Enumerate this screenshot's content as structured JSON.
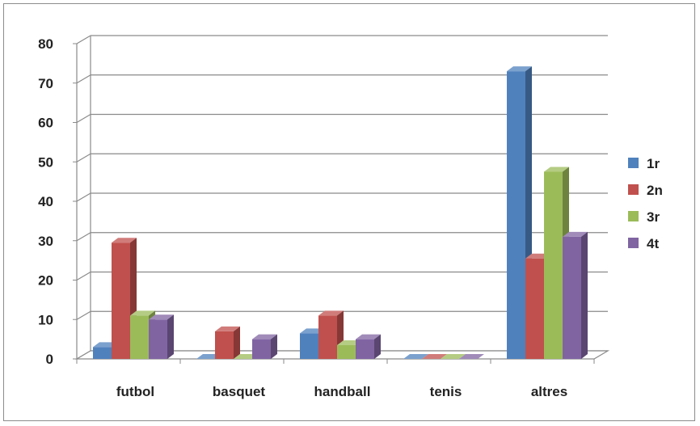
{
  "chart_data": {
    "type": "bar",
    "title": "",
    "xlabel": "",
    "ylabel": "",
    "ylim": [
      0,
      80
    ],
    "yticks": [
      0,
      10,
      20,
      30,
      40,
      50,
      60,
      70,
      80
    ],
    "grid": true,
    "legend_position": "right",
    "categories": [
      "futbol",
      "basquet",
      "handball",
      "tenis",
      "altres"
    ],
    "series": [
      {
        "name": "1r",
        "color": "#4F81BD",
        "values": [
          3,
          0,
          6.5,
          0,
          73
        ]
      },
      {
        "name": "2n",
        "color": "#C0504D",
        "values": [
          29.5,
          7,
          11,
          0,
          25.5
        ]
      },
      {
        "name": "3r",
        "color": "#9BBB59",
        "values": [
          11,
          0,
          3.5,
          0,
          47.5
        ]
      },
      {
        "name": "4t",
        "color": "#8064A2",
        "values": [
          10,
          5,
          5,
          0,
          31
        ]
      }
    ]
  }
}
